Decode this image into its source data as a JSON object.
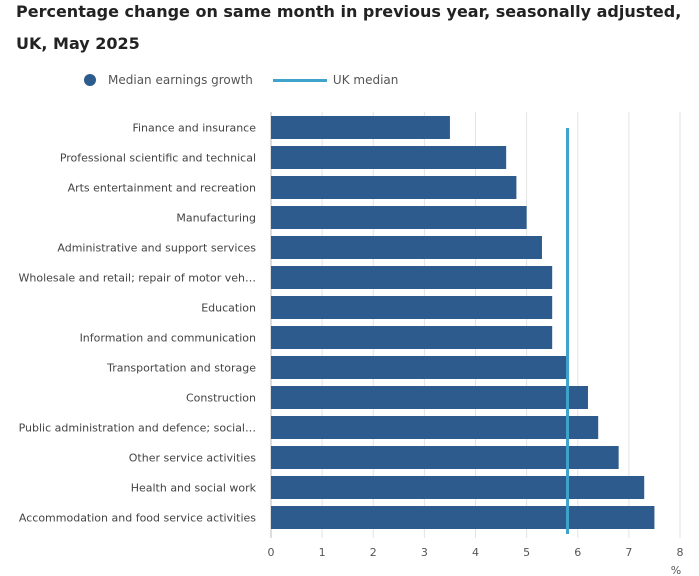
{
  "title_line1": "Percentage change on same month in previous year, seasonally adjusted,",
  "title_line2": "UK, May 2025",
  "legend": {
    "series_label": "Median earnings growth",
    "reference_label": "UK median"
  },
  "colors": {
    "bar": "#2e5b8d",
    "reference_line": "#3fa3cc",
    "grid": "#e3e3e3",
    "axis": "#bbbbbb"
  },
  "chart_data": {
    "type": "bar",
    "orientation": "horizontal",
    "categories": [
      "Finance and insurance",
      "Professional scientific and technical",
      "Arts entertainment and recreation",
      "Manufacturing",
      "Administrative and support services",
      "Wholesale and retail; repair of motor veh…",
      "Education",
      "Information and communication",
      "Transportation and storage",
      "Construction",
      "Public administration and defence; social…",
      "Other service activities",
      "Health and social work",
      "Accommodation and food service activities"
    ],
    "values": [
      3.5,
      4.6,
      4.8,
      5.0,
      5.3,
      5.5,
      5.5,
      5.5,
      5.8,
      6.2,
      6.4,
      6.8,
      7.3,
      7.5
    ],
    "reference_value": 5.8,
    "xlim": [
      0,
      8
    ],
    "xticks": [
      "0",
      "1",
      "2",
      "3",
      "4",
      "5",
      "6",
      "7",
      "8"
    ],
    "xunit": "%",
    "grid": true,
    "legend_position": "top"
  }
}
